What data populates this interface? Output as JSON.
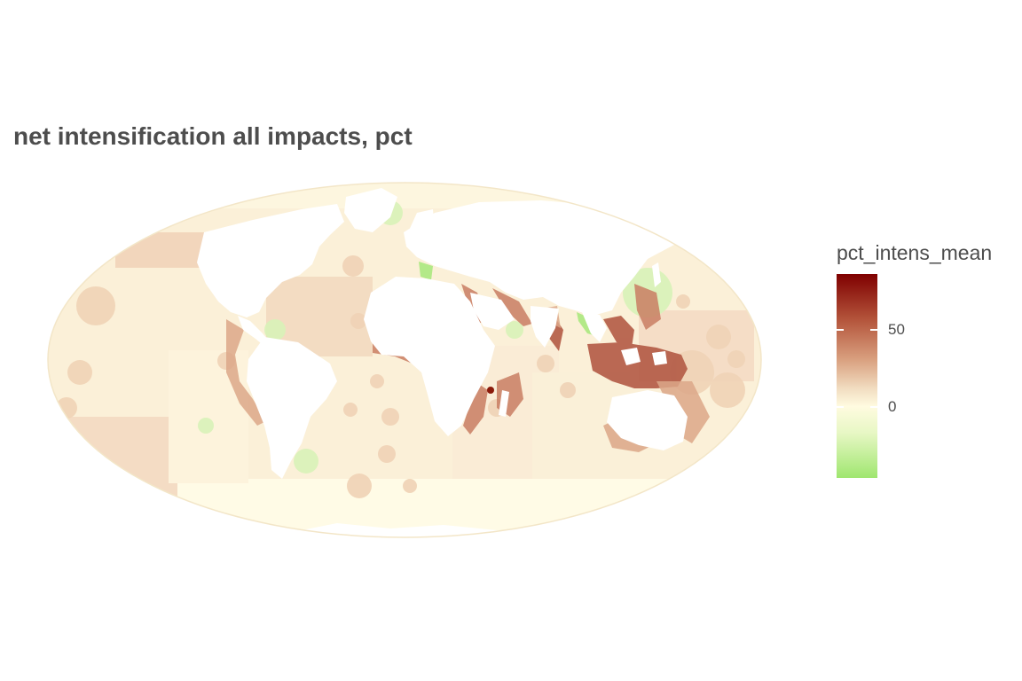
{
  "title": "net intensification all impacts, pct",
  "legend": {
    "title": "pct_intens_mean",
    "ticks": [
      {
        "label": "50",
        "value": 50
      },
      {
        "label": "0",
        "value": 0
      }
    ],
    "range": [
      -45,
      85
    ],
    "colors": {
      "high": "#7f0000",
      "mid_high": "#b3533a",
      "mid": "#fffbe0",
      "low": "#9fe66f"
    }
  },
  "map": {
    "projection": "mollweide",
    "land_color": "#ffffff",
    "ocean_base_color": "#fbf0d8"
  }
}
